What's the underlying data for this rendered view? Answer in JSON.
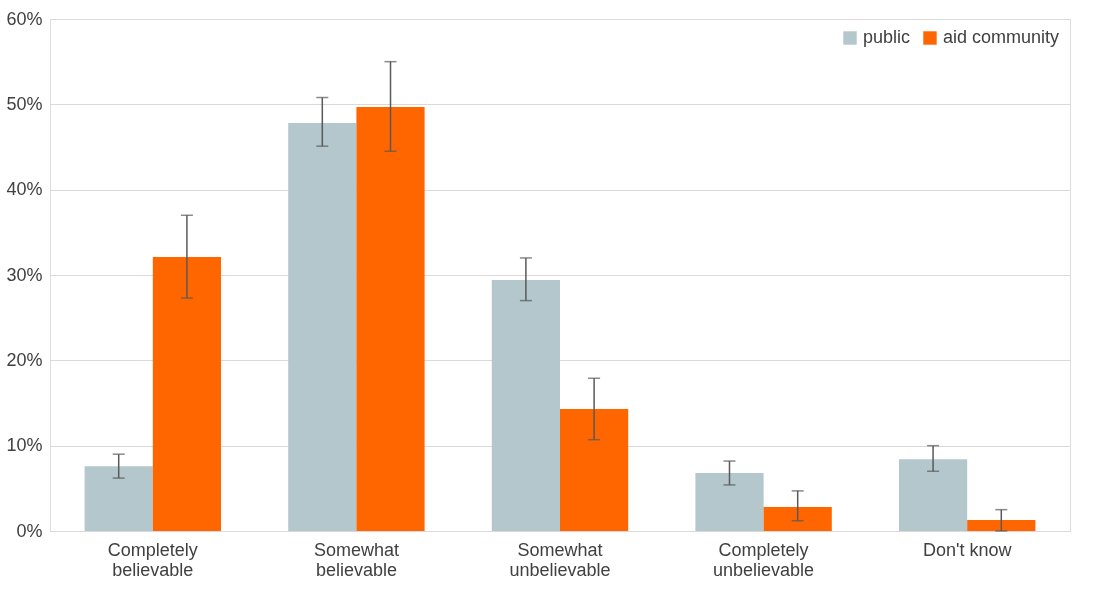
{
  "chart_data": {
    "type": "bar",
    "categories": [
      "Completely\nbelievable",
      "Somewhat\nbelievable",
      "Somewhat\nunbelievable",
      "Completely\nunbelievable",
      "Don't know"
    ],
    "series": [
      {
        "name": "public",
        "color": "#b4c7cc",
        "values": [
          7.6,
          47.8,
          29.4,
          6.8,
          8.4
        ],
        "errors": [
          [
            6.2,
            9.0
          ],
          [
            45.1,
            50.8
          ],
          [
            27.0,
            32.0
          ],
          [
            5.4,
            8.2
          ],
          [
            7.0,
            10.0
          ]
        ]
      },
      {
        "name": "aid community",
        "color": "#ff6600",
        "values": [
          32.1,
          49.7,
          14.3,
          2.8,
          1.3
        ],
        "errors": [
          [
            27.3,
            37.0
          ],
          [
            44.5,
            55.0
          ],
          [
            10.7,
            17.9
          ],
          [
            1.2,
            4.7
          ],
          [
            0.0,
            2.5
          ]
        ]
      }
    ],
    "ylim": [
      0,
      60
    ],
    "yticks": [
      {
        "value": 0,
        "label": "0%"
      },
      {
        "value": 10,
        "label": "10%"
      },
      {
        "value": 20,
        "label": "20%"
      },
      {
        "value": 30,
        "label": "30%"
      },
      {
        "value": 40,
        "label": "40%"
      },
      {
        "value": 50,
        "label": "50%"
      },
      {
        "value": 60,
        "label": "60%"
      }
    ],
    "grid": "y",
    "legend": "top right"
  }
}
